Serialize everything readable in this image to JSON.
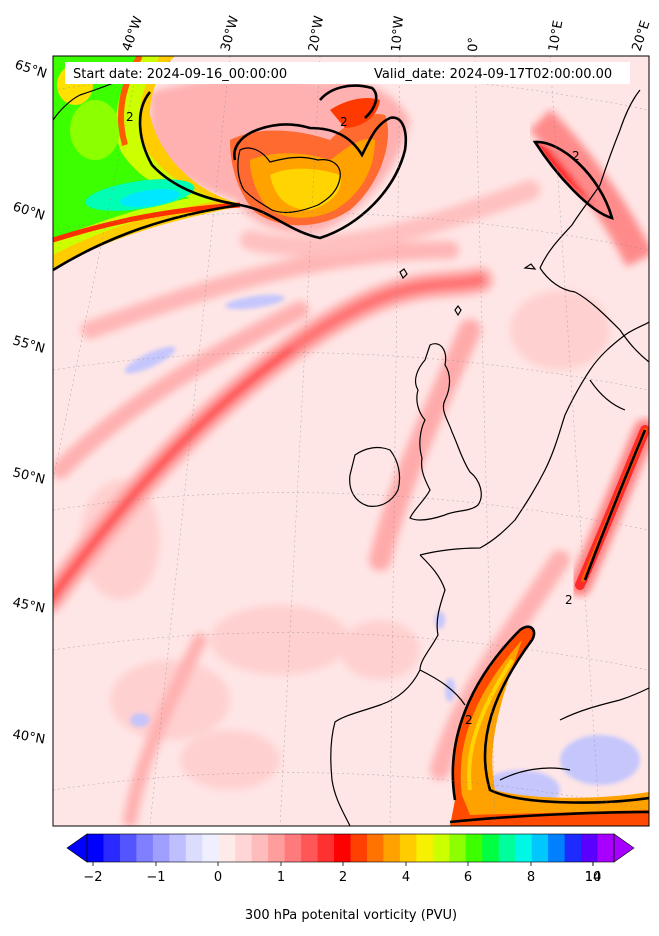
{
  "header": {
    "start_date": "Start date: 2024-09-16_00:00:00",
    "valid_date": "Valid_date: 2024-09-17T02:00:00.00"
  },
  "longitude_labels": [
    "40°W",
    "30°W",
    "20°W",
    "10°W",
    "0°",
    "10°E",
    "20°E"
  ],
  "latitude_labels": [
    "65°N",
    "60°N",
    "55°N",
    "50°N",
    "45°N",
    "40°N"
  ],
  "contour_label": "2",
  "colorbar": {
    "title": "300 hPa potenital vorticity (PVU)",
    "tick_labels": [
      "−2",
      "−1",
      "0",
      "1",
      "2",
      "4",
      "6",
      "8",
      "10",
      "14"
    ],
    "colors": [
      "#0000ff",
      "#2a2aff",
      "#5555ff",
      "#7f7fff",
      "#9f9fff",
      "#bfbfff",
      "#dcdcff",
      "#efefff",
      "#ffeaea",
      "#ffd5d5",
      "#ffbcbc",
      "#ff9c9c",
      "#ff7a7a",
      "#ff5757",
      "#ff3030",
      "#ff0000",
      "#ff4000",
      "#ff7400",
      "#ffa200",
      "#ffcc00",
      "#f7f000",
      "#ccff00",
      "#8cff00",
      "#3cff00",
      "#00ff40",
      "#00ff9c",
      "#00f7e8",
      "#00c8ff",
      "#0080ff",
      "#1c2cff",
      "#5a00ff",
      "#a800ff"
    ]
  }
}
